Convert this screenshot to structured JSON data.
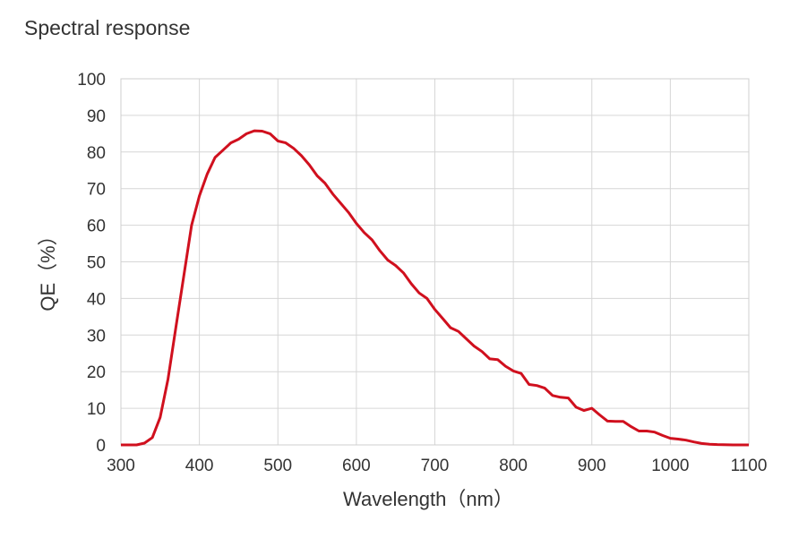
{
  "chart_data": {
    "type": "line",
    "title": "Spectral response",
    "xlabel": "Wavelength（nm）",
    "ylabel": "QE（%）",
    "xlim": [
      300,
      1100
    ],
    "ylim": [
      0,
      100
    ],
    "grid": true,
    "xticks": [
      300,
      400,
      500,
      600,
      700,
      800,
      900,
      1000,
      1100
    ],
    "yticks": [
      0,
      10,
      20,
      30,
      40,
      50,
      60,
      70,
      80,
      90,
      100
    ],
    "line_color": "#d0101e",
    "series": [
      {
        "name": "QE",
        "x": [
          300,
          320,
          330,
          340,
          350,
          360,
          370,
          380,
          390,
          400,
          410,
          420,
          430,
          440,
          450,
          460,
          470,
          480,
          490,
          500,
          510,
          520,
          530,
          540,
          550,
          560,
          570,
          580,
          590,
          600,
          610,
          620,
          630,
          640,
          650,
          660,
          670,
          680,
          690,
          700,
          710,
          720,
          730,
          740,
          750,
          760,
          770,
          780,
          790,
          800,
          810,
          820,
          830,
          840,
          850,
          860,
          870,
          880,
          890,
          900,
          910,
          920,
          930,
          940,
          950,
          960,
          970,
          980,
          990,
          1000,
          1010,
          1020,
          1030,
          1040,
          1050,
          1060,
          1080,
          1100
        ],
        "y": [
          0,
          0,
          0.5,
          2,
          7.5,
          18,
          32,
          46,
          60,
          68,
          74,
          78.5,
          80.5,
          82.5,
          83.5,
          85,
          85.8,
          85.7,
          85,
          83,
          82.5,
          81,
          79,
          76.5,
          73.5,
          71.5,
          68.5,
          66,
          63.5,
          60.5,
          58,
          56,
          53,
          50.5,
          49,
          47,
          44,
          41.5,
          40,
          37,
          34.5,
          32,
          31,
          29,
          27,
          25.5,
          23.5,
          23.3,
          21.5,
          20.2,
          19.5,
          16.5,
          16.2,
          15.5,
          13.5,
          13,
          12.8,
          10.3,
          9.4,
          10,
          8.2,
          6.5,
          6.4,
          6.4,
          5,
          3.8,
          3.8,
          3.5,
          2.6,
          1.8,
          1.6,
          1.3,
          0.8,
          0.4,
          0.2,
          0.1,
          0,
          0
        ]
      }
    ]
  }
}
